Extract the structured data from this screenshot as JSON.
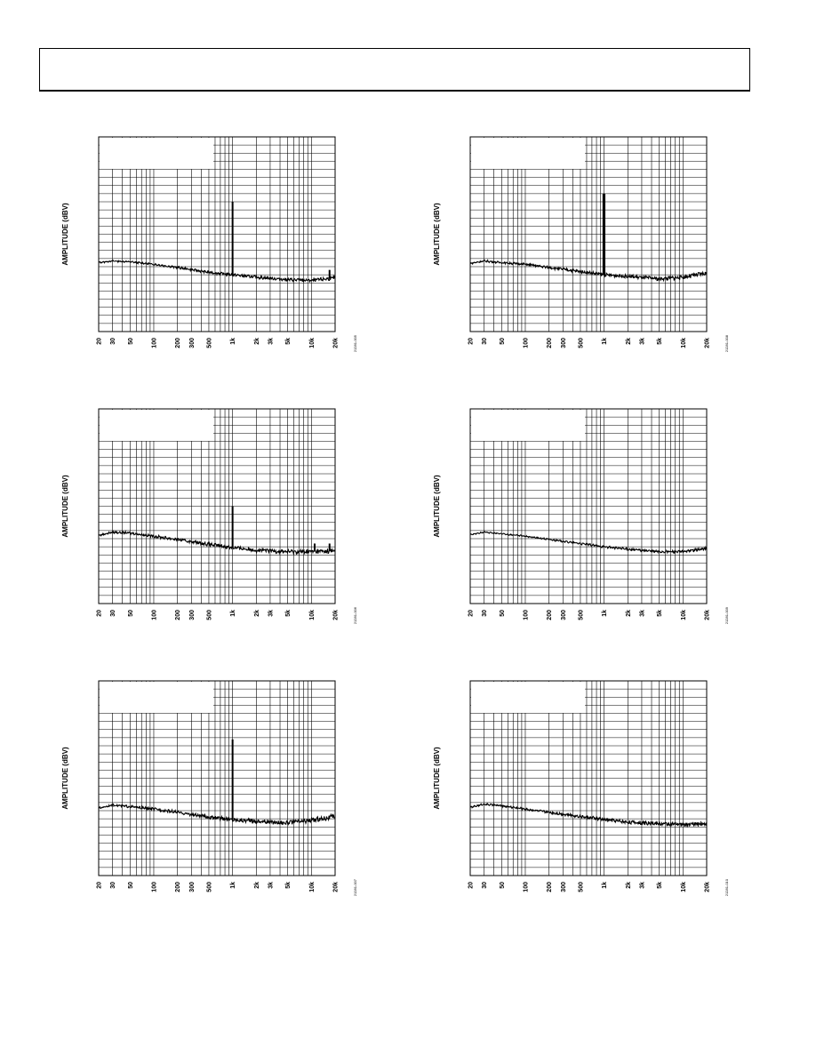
{
  "page": {
    "header_text": ""
  },
  "charts": [
    {
      "id": "a",
      "figure_id": "21281-005"
    },
    {
      "id": "b",
      "figure_id": "21281-008"
    },
    {
      "id": "c",
      "figure_id": "21281-006"
    },
    {
      "id": "d",
      "figure_id": "21281-009"
    },
    {
      "id": "e",
      "figure_id": "21281-007"
    },
    {
      "id": "f",
      "figure_id": "21281-010"
    }
  ],
  "chart_data": [
    {
      "type": "line",
      "ylabel": "AMPLITUDE (dBV)",
      "xlabel": "",
      "log_x": true,
      "grid": true,
      "xlim": [
        20,
        20000
      ],
      "ylim": [
        0,
        24
      ],
      "y_unit_note": "relative grid divisions",
      "xticks": [
        20,
        30,
        50,
        100,
        200,
        300,
        500,
        1000,
        2000,
        3000,
        5000,
        10000,
        20000
      ],
      "xtick_labels": [
        "20",
        "30",
        "50",
        "100",
        "200",
        "300",
        "500",
        "1k",
        "2k",
        "3k",
        "5k",
        "10k",
        "20k"
      ],
      "series": [
        {
          "x": [
            20,
            30,
            50,
            100,
            200,
            500,
            1000,
            2000,
            5000,
            10000,
            20000
          ],
          "y": [
            8.5,
            8.7,
            8.6,
            8.3,
            7.9,
            7.3,
            7.0,
            6.7,
            6.4,
            6.3,
            6.6
          ]
        }
      ],
      "spikes": [
        {
          "x": 1000,
          "y": 16.0
        },
        {
          "x": 17000,
          "y": 7.6
        }
      ],
      "noise_band": 0.4
    },
    {
      "type": "line",
      "ylabel": "AMPLITUDE (dBV)",
      "xlabel": "",
      "log_x": true,
      "grid": true,
      "xlim": [
        20,
        20000
      ],
      "ylim": [
        0,
        24
      ],
      "y_unit_note": "relative grid divisions",
      "xticks": [
        20,
        30,
        50,
        100,
        200,
        300,
        500,
        1000,
        2000,
        3000,
        5000,
        10000,
        20000
      ],
      "xtick_labels": [
        "20",
        "30",
        "50",
        "100",
        "200",
        "300",
        "500",
        "1k",
        "2k",
        "3k",
        "5k",
        "10k",
        "20k"
      ],
      "series": [
        {
          "x": [
            20,
            30,
            50,
            100,
            200,
            500,
            1000,
            2000,
            5000,
            10000,
            20000
          ],
          "y": [
            8.4,
            8.7,
            8.5,
            8.3,
            7.9,
            7.4,
            7.0,
            6.8,
            6.5,
            6.7,
            7.2
          ]
        }
      ],
      "spikes": [
        {
          "x": 980,
          "y": 17.0
        },
        {
          "x": 1010,
          "y": 17.0
        }
      ],
      "noise_band": 0.5
    },
    {
      "type": "line",
      "ylabel": "AMPLITUDE (dBV)",
      "xlabel": "",
      "log_x": true,
      "grid": true,
      "xlim": [
        20,
        20000
      ],
      "ylim": [
        0,
        24
      ],
      "y_unit_note": "relative grid divisions",
      "xticks": [
        20,
        30,
        50,
        100,
        200,
        300,
        500,
        1000,
        2000,
        3000,
        5000,
        10000,
        20000
      ],
      "xtick_labels": [
        "20",
        "30",
        "50",
        "100",
        "200",
        "300",
        "500",
        "1k",
        "2k",
        "3k",
        "5k",
        "10k",
        "20k"
      ],
      "series": [
        {
          "x": [
            20,
            30,
            50,
            100,
            200,
            500,
            1000,
            2000,
            5000,
            10000,
            20000
          ],
          "y": [
            8.4,
            8.8,
            8.7,
            8.3,
            7.9,
            7.3,
            6.9,
            6.6,
            6.4,
            6.4,
            6.5
          ]
        }
      ],
      "spikes": [
        {
          "x": 1000,
          "y": 12.0
        },
        {
          "x": 11000,
          "y": 7.4
        },
        {
          "x": 17000,
          "y": 7.4
        }
      ],
      "noise_band": 0.6
    },
    {
      "type": "line",
      "ylabel": "AMPLITUDE (dBV)",
      "xlabel": "",
      "log_x": true,
      "grid": true,
      "xlim": [
        20,
        20000
      ],
      "ylim": [
        0,
        24
      ],
      "y_unit_note": "relative grid divisions",
      "xticks": [
        20,
        30,
        50,
        100,
        200,
        300,
        500,
        1000,
        2000,
        3000,
        5000,
        10000,
        20000
      ],
      "xtick_labels": [
        "20",
        "30",
        "50",
        "100",
        "200",
        "300",
        "500",
        "1k",
        "2k",
        "3k",
        "5k",
        "10k",
        "20k"
      ],
      "series": [
        {
          "x": [
            20,
            30,
            50,
            100,
            200,
            500,
            1000,
            2000,
            5000,
            10000,
            20000
          ],
          "y": [
            8.5,
            8.8,
            8.6,
            8.3,
            7.9,
            7.4,
            7.0,
            6.7,
            6.4,
            6.4,
            6.8
          ]
        }
      ],
      "spikes": [],
      "noise_band": 0.3
    },
    {
      "type": "line",
      "ylabel": "AMPLITUDE (dBV)",
      "xlabel": "",
      "log_x": true,
      "grid": true,
      "xlim": [
        20,
        20000
      ],
      "ylim": [
        0,
        24
      ],
      "y_unit_note": "relative grid divisions",
      "xticks": [
        20,
        30,
        50,
        100,
        200,
        300,
        500,
        1000,
        2000,
        3000,
        5000,
        10000,
        20000
      ],
      "xtick_labels": [
        "20",
        "30",
        "50",
        "100",
        "200",
        "300",
        "500",
        "1k",
        "2k",
        "3k",
        "5k",
        "10k",
        "20k"
      ],
      "series": [
        {
          "x": [
            20,
            30,
            50,
            100,
            200,
            500,
            1000,
            2000,
            5000,
            10000,
            20000
          ],
          "y": [
            8.3,
            8.7,
            8.5,
            8.2,
            7.8,
            7.2,
            6.9,
            6.7,
            6.5,
            6.8,
            7.3
          ]
        }
      ],
      "spikes": [
        {
          "x": 1000,
          "y": 16.8
        }
      ],
      "noise_band": 0.6
    },
    {
      "type": "line",
      "ylabel": "AMPLITUDE (dBV)",
      "xlabel": "",
      "log_x": true,
      "grid": true,
      "xlim": [
        20,
        20000
      ],
      "ylim": [
        0,
        24
      ],
      "y_unit_note": "relative grid divisions",
      "xticks": [
        20,
        30,
        50,
        100,
        200,
        300,
        500,
        1000,
        2000,
        3000,
        5000,
        10000,
        20000
      ],
      "xtick_labels": [
        "20",
        "30",
        "50",
        "100",
        "200",
        "300",
        "500",
        "1k",
        "2k",
        "3k",
        "5k",
        "10k",
        "20k"
      ],
      "series": [
        {
          "x": [
            20,
            30,
            50,
            100,
            200,
            500,
            1000,
            2000,
            5000,
            10000,
            20000
          ],
          "y": [
            8.4,
            8.8,
            8.6,
            8.2,
            7.8,
            7.3,
            6.9,
            6.6,
            6.4,
            6.3,
            6.4
          ]
        }
      ],
      "spikes": [],
      "noise_band": 0.5
    }
  ]
}
